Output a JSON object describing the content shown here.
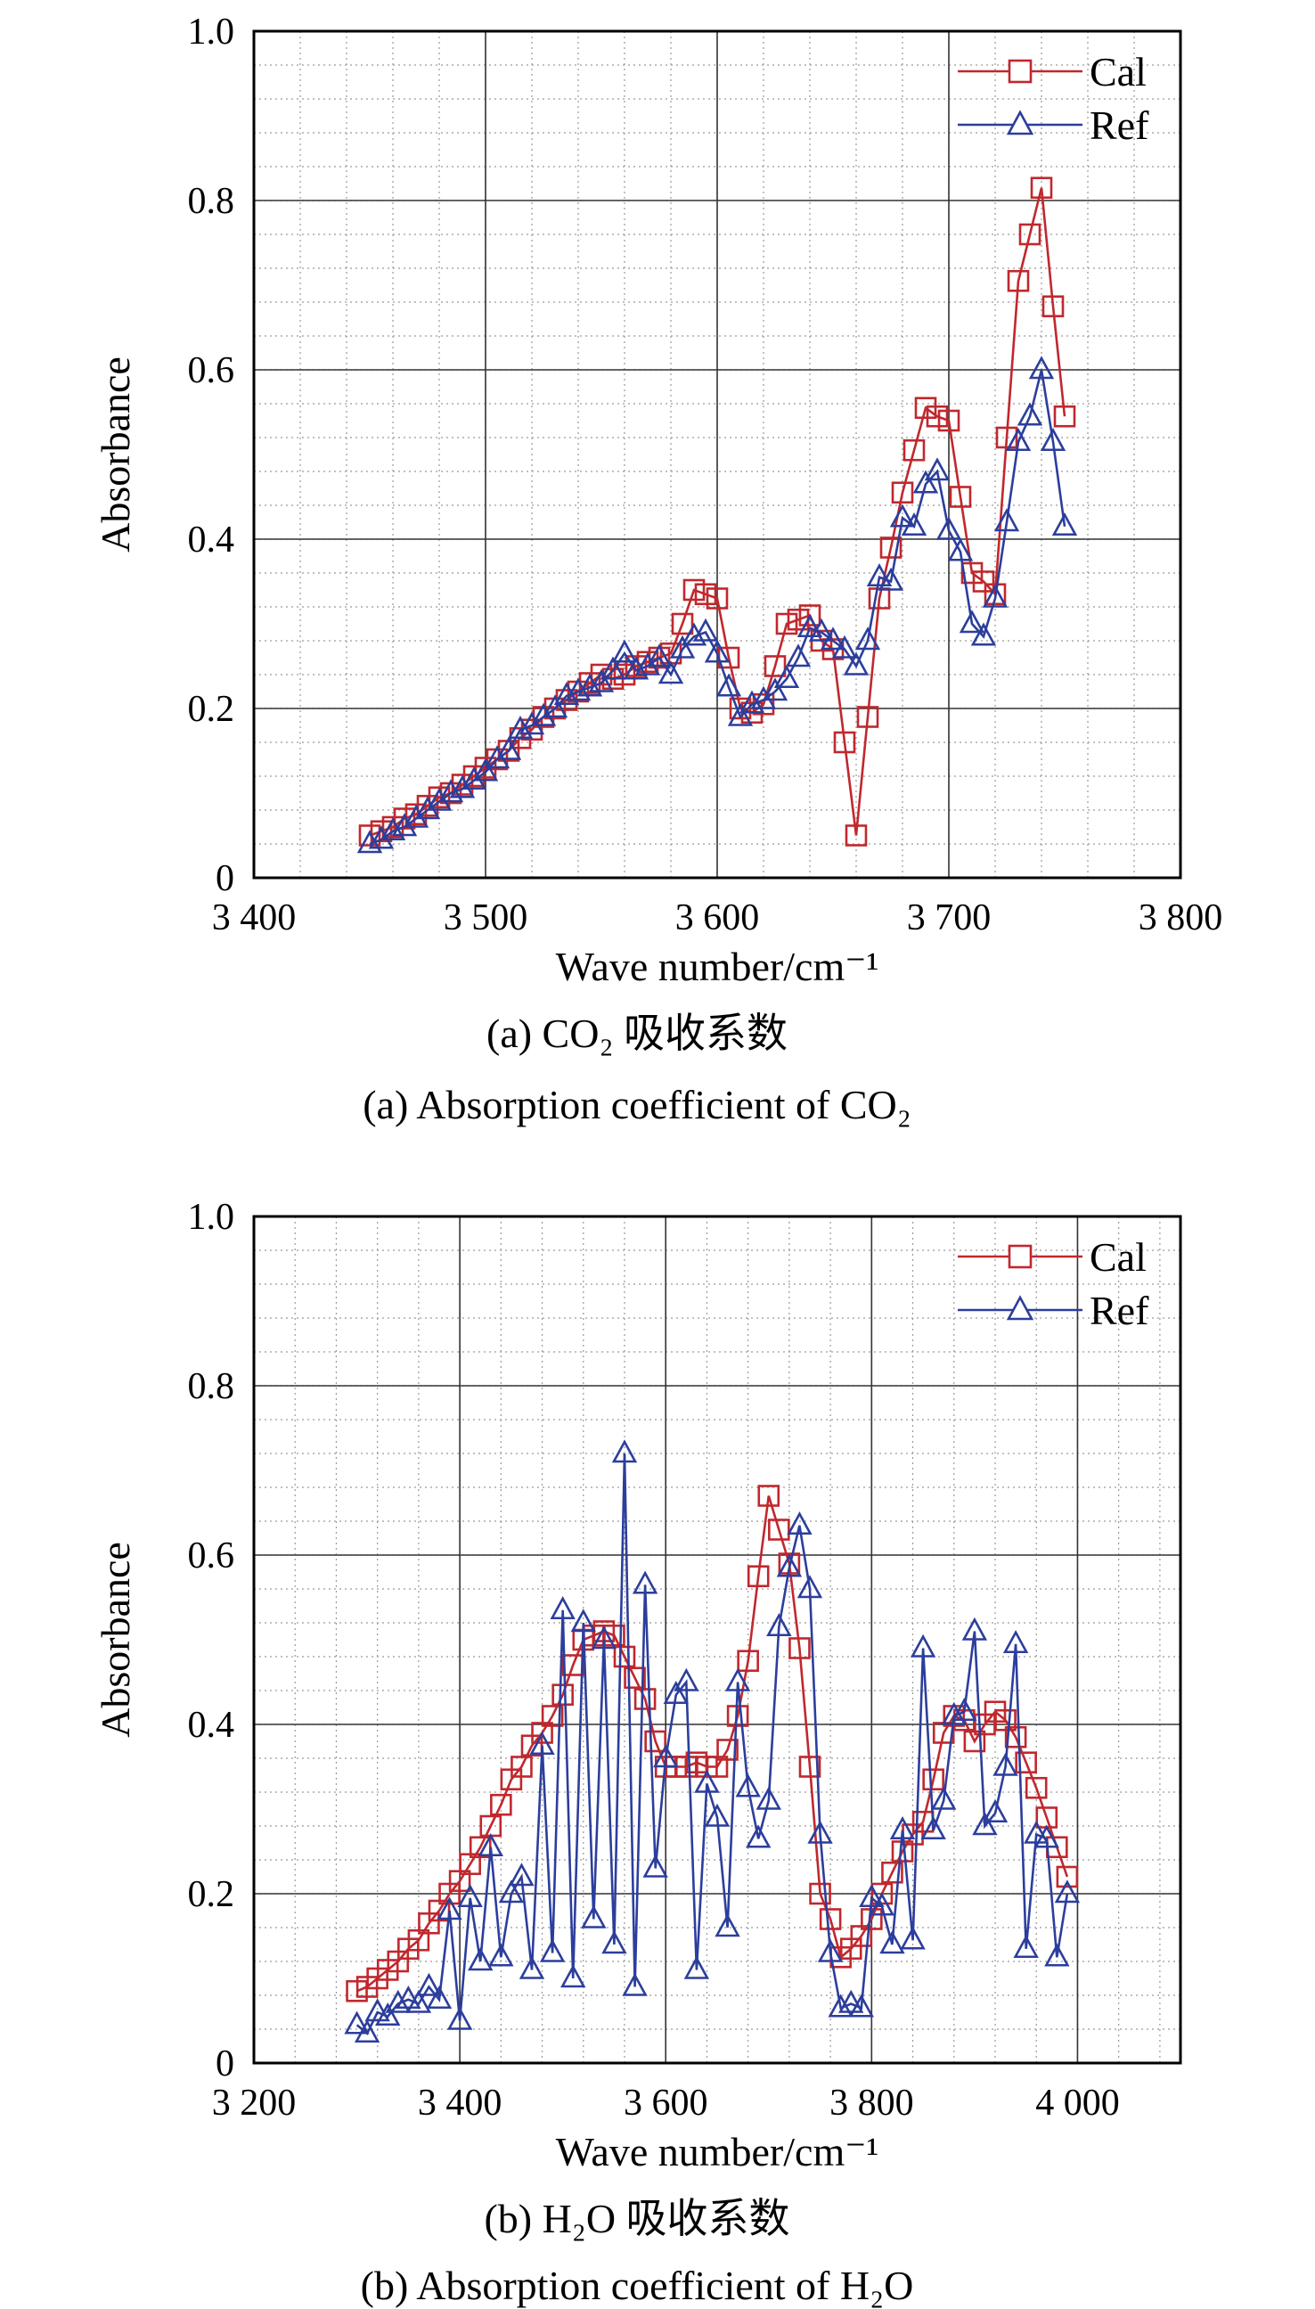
{
  "chart_data": [
    {
      "type": "line",
      "caption_cn": "(a) CO₂ 吸收系数",
      "caption_en": "(a) Absorption coefficient of CO₂",
      "xlabel": "Wave number/cm⁻¹",
      "ylabel": "Absorbance",
      "xlim": [
        3400,
        3800
      ],
      "ylim": [
        0,
        1.0
      ],
      "x_ticks": [
        3400,
        3500,
        3600,
        3700,
        3800
      ],
      "x_tick_labels": [
        "3 400",
        "3 500",
        "3 600",
        "3 700",
        "3 800"
      ],
      "y_ticks": [
        0,
        0.2,
        0.4,
        0.6,
        0.8,
        1.0
      ],
      "y_tick_labels": [
        "0",
        "0.2",
        "0.4",
        "0.6",
        "0.8",
        "1.0"
      ],
      "grid": true,
      "legend_position": "top-right",
      "series": [
        {
          "name": "Cal",
          "color": "#c0282d",
          "marker": "square",
          "x": [
            3450,
            3455,
            3460,
            3465,
            3470,
            3475,
            3480,
            3485,
            3490,
            3495,
            3500,
            3505,
            3510,
            3515,
            3520,
            3525,
            3530,
            3535,
            3540,
            3545,
            3550,
            3555,
            3560,
            3565,
            3570,
            3575,
            3580,
            3585,
            3590,
            3595,
            3600,
            3605,
            3610,
            3615,
            3620,
            3625,
            3630,
            3635,
            3640,
            3645,
            3650,
            3655,
            3660,
            3665,
            3670,
            3675,
            3680,
            3685,
            3690,
            3695,
            3700,
            3705,
            3710,
            3715,
            3720,
            3725,
            3730,
            3735,
            3740,
            3745,
            3750
          ],
          "y": [
            0.05,
            0.055,
            0.06,
            0.07,
            0.075,
            0.085,
            0.095,
            0.1,
            0.11,
            0.12,
            0.13,
            0.14,
            0.15,
            0.165,
            0.175,
            0.19,
            0.2,
            0.21,
            0.22,
            0.23,
            0.24,
            0.235,
            0.24,
            0.25,
            0.255,
            0.26,
            0.265,
            0.3,
            0.34,
            0.335,
            0.33,
            0.26,
            0.2,
            0.195,
            0.205,
            0.25,
            0.3,
            0.305,
            0.31,
            0.28,
            0.27,
            0.16,
            0.05,
            0.19,
            0.33,
            0.39,
            0.455,
            0.505,
            0.555,
            0.545,
            0.54,
            0.45,
            0.36,
            0.35,
            0.335,
            0.52,
            0.705,
            0.76,
            0.815,
            0.675,
            0.545
          ]
        },
        {
          "name": "Ref",
          "color": "#2c3e9c",
          "marker": "triangle",
          "x": [
            3450,
            3455,
            3460,
            3465,
            3470,
            3475,
            3480,
            3485,
            3490,
            3495,
            3500,
            3505,
            3510,
            3515,
            3520,
            3525,
            3530,
            3535,
            3540,
            3545,
            3550,
            3555,
            3560,
            3565,
            3570,
            3575,
            3580,
            3585,
            3590,
            3595,
            3600,
            3605,
            3610,
            3615,
            3620,
            3625,
            3630,
            3635,
            3640,
            3645,
            3650,
            3655,
            3660,
            3665,
            3670,
            3675,
            3680,
            3685,
            3690,
            3695,
            3700,
            3705,
            3710,
            3715,
            3720,
            3725,
            3730,
            3735,
            3740,
            3745,
            3750
          ],
          "y": [
            0.04,
            0.045,
            0.055,
            0.06,
            0.07,
            0.08,
            0.09,
            0.1,
            0.105,
            0.115,
            0.125,
            0.14,
            0.15,
            0.175,
            0.18,
            0.19,
            0.2,
            0.215,
            0.22,
            0.225,
            0.23,
            0.245,
            0.265,
            0.245,
            0.25,
            0.26,
            0.24,
            0.27,
            0.285,
            0.29,
            0.265,
            0.225,
            0.19,
            0.205,
            0.21,
            0.22,
            0.235,
            0.26,
            0.295,
            0.29,
            0.28,
            0.27,
            0.25,
            0.28,
            0.355,
            0.35,
            0.425,
            0.415,
            0.465,
            0.48,
            0.41,
            0.385,
            0.3,
            0.285,
            0.33,
            0.42,
            0.515,
            0.545,
            0.6,
            0.515,
            0.415
          ]
        }
      ]
    },
    {
      "type": "line",
      "caption_cn": "(b) H₂O 吸收系数",
      "caption_en": "(b) Absorption coefficient of H₂O",
      "xlabel": "Wave number/cm⁻¹",
      "ylabel": "Absorbance",
      "xlim": [
        3200,
        4100
      ],
      "ylim": [
        0,
        1.0
      ],
      "x_ticks": [
        3200,
        3400,
        3600,
        3800,
        4000
      ],
      "x_tick_labels": [
        "3 200",
        "3 400",
        "3 600",
        "3 800",
        "4 000"
      ],
      "y_ticks": [
        0,
        0.2,
        0.4,
        0.6,
        0.8,
        1.0
      ],
      "y_tick_labels": [
        "0",
        "0.2",
        "0.4",
        "0.6",
        "0.8",
        "1.0"
      ],
      "grid": true,
      "legend_position": "top-right",
      "series": [
        {
          "name": "Cal",
          "color": "#c0282d",
          "marker": "square",
          "x": [
            3300,
            3310,
            3320,
            3330,
            3340,
            3350,
            3360,
            3370,
            3380,
            3390,
            3400,
            3410,
            3420,
            3430,
            3440,
            3450,
            3460,
            3470,
            3480,
            3490,
            3500,
            3510,
            3520,
            3530,
            3540,
            3550,
            3560,
            3570,
            3580,
            3590,
            3600,
            3610,
            3620,
            3630,
            3640,
            3650,
            3660,
            3670,
            3680,
            3690,
            3700,
            3710,
            3720,
            3730,
            3740,
            3750,
            3760,
            3770,
            3780,
            3790,
            3800,
            3810,
            3820,
            3830,
            3840,
            3850,
            3860,
            3870,
            3880,
            3890,
            3900,
            3910,
            3920,
            3930,
            3940,
            3950,
            3960,
            3970,
            3980,
            3990
          ],
          "y": [
            0.085,
            0.09,
            0.1,
            0.11,
            0.12,
            0.135,
            0.145,
            0.165,
            0.18,
            0.2,
            0.215,
            0.235,
            0.255,
            0.28,
            0.305,
            0.335,
            0.35,
            0.375,
            0.39,
            0.41,
            0.435,
            0.47,
            0.5,
            0.505,
            0.51,
            0.505,
            0.48,
            0.455,
            0.43,
            0.38,
            0.35,
            0.35,
            0.35,
            0.355,
            0.35,
            0.35,
            0.37,
            0.41,
            0.475,
            0.575,
            0.67,
            0.63,
            0.59,
            0.49,
            0.35,
            0.2,
            0.17,
            0.125,
            0.135,
            0.15,
            0.17,
            0.2,
            0.225,
            0.25,
            0.27,
            0.285,
            0.335,
            0.39,
            0.41,
            0.405,
            0.38,
            0.4,
            0.415,
            0.405,
            0.385,
            0.355,
            0.325,
            0.29,
            0.255,
            0.22
          ]
        },
        {
          "name": "Ref",
          "color": "#2c3e9c",
          "marker": "triangle",
          "x": [
            3300,
            3310,
            3320,
            3330,
            3340,
            3350,
            3360,
            3370,
            3380,
            3390,
            3400,
            3410,
            3420,
            3430,
            3440,
            3450,
            3460,
            3470,
            3480,
            3490,
            3500,
            3510,
            3520,
            3530,
            3540,
            3550,
            3560,
            3570,
            3580,
            3590,
            3600,
            3610,
            3620,
            3630,
            3640,
            3650,
            3660,
            3670,
            3680,
            3690,
            3700,
            3710,
            3720,
            3730,
            3740,
            3750,
            3760,
            3770,
            3780,
            3790,
            3800,
            3810,
            3820,
            3830,
            3840,
            3850,
            3860,
            3870,
            3880,
            3890,
            3900,
            3910,
            3920,
            3930,
            3940,
            3950,
            3960,
            3970,
            3980,
            3990
          ],
          "y": [
            0.045,
            0.035,
            0.06,
            0.055,
            0.07,
            0.075,
            0.07,
            0.09,
            0.075,
            0.18,
            0.05,
            0.195,
            0.12,
            0.255,
            0.125,
            0.2,
            0.22,
            0.11,
            0.375,
            0.13,
            0.535,
            0.1,
            0.52,
            0.17,
            0.5,
            0.14,
            0.72,
            0.09,
            0.565,
            0.23,
            0.36,
            0.435,
            0.45,
            0.11,
            0.33,
            0.29,
            0.16,
            0.45,
            0.325,
            0.265,
            0.31,
            0.515,
            0.585,
            0.635,
            0.56,
            0.27,
            0.13,
            0.065,
            0.07,
            0.065,
            0.195,
            0.185,
            0.14,
            0.275,
            0.145,
            0.49,
            0.275,
            0.31,
            0.41,
            0.415,
            0.51,
            0.28,
            0.295,
            0.35,
            0.495,
            0.135,
            0.27,
            0.265,
            0.125,
            0.2
          ]
        }
      ]
    }
  ]
}
